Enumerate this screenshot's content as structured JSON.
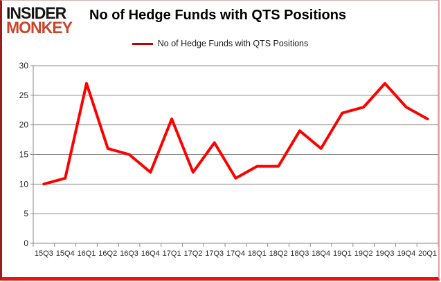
{
  "logo": {
    "line1": "INSIDER",
    "line2": "MONKEY"
  },
  "header": {
    "title": "No of Hedge Funds with QTS Positions"
  },
  "legend": {
    "label": "No of Hedge Funds with QTS Positions"
  },
  "chart_data": {
    "type": "line",
    "title": "No of Hedge Funds with QTS Positions",
    "categories": [
      "15Q3",
      "15Q4",
      "16Q1",
      "16Q2",
      "16Q3",
      "16Q4",
      "17Q1",
      "17Q2",
      "17Q3",
      "17Q4",
      "18Q1",
      "18Q2",
      "18Q3",
      "18Q4",
      "19Q1",
      "19Q2",
      "19Q3",
      "19Q4",
      "20Q1"
    ],
    "series": [
      {
        "name": "No of Hedge Funds with QTS Positions",
        "color": "#fe0000",
        "values": [
          10,
          11,
          27,
          16,
          15,
          12,
          21,
          12,
          17,
          11,
          13,
          13,
          19,
          16,
          22,
          23,
          27,
          23,
          21
        ]
      }
    ],
    "xlabel": "",
    "ylabel": "",
    "ylim": [
      0,
      30
    ],
    "yticks": [
      0,
      5,
      10,
      15,
      20,
      25,
      30
    ],
    "grid": "horizontal",
    "legend_position": "top"
  },
  "colors": {
    "line": "#fe0000",
    "legend_swatch": "#c00000",
    "grid": "#8a8a8a",
    "tick_label": "#262626",
    "logo_black": "#161616",
    "logo_red": "#c9452c",
    "frame_bottom": "#ea1111",
    "frame_left": "#9b1c1c"
  }
}
